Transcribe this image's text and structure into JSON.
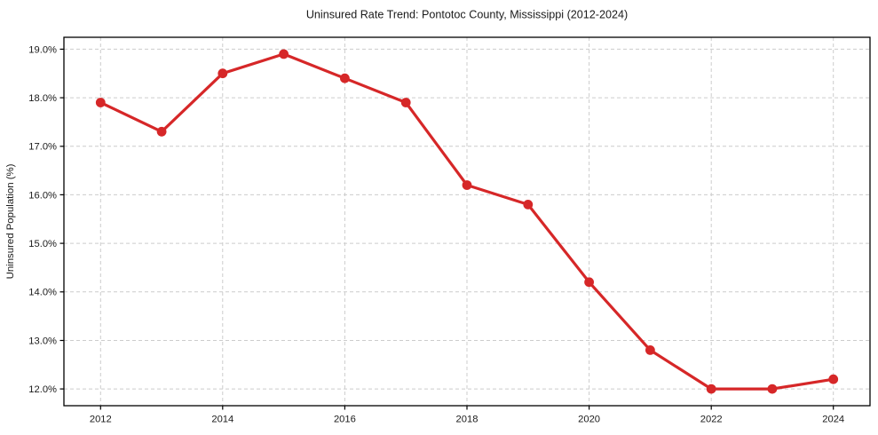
{
  "figure": {
    "background": "#ffffff"
  },
  "chart_data": {
    "type": "line",
    "title": "Uninsured Rate Trend: Pontotoc County, Mississippi (2012-2024)",
    "xlabel": "",
    "ylabel": "Uninsured Population (%)",
    "x": [
      2012,
      2013,
      2014,
      2015,
      2016,
      2017,
      2018,
      2019,
      2020,
      2021,
      2022,
      2023,
      2024
    ],
    "values": [
      17.9,
      17.3,
      18.5,
      18.9,
      18.4,
      17.9,
      16.2,
      15.8,
      14.2,
      12.8,
      12.0,
      12.0,
      12.2
    ],
    "xticks": [
      2012,
      2014,
      2016,
      2018,
      2020,
      2022,
      2024
    ],
    "xtick_labels": [
      "2012",
      "2014",
      "2016",
      "2018",
      "2020",
      "2022",
      "2024"
    ],
    "yticks": [
      12,
      13,
      14,
      15,
      16,
      17,
      18,
      19
    ],
    "ytick_labels": [
      "12.0%",
      "13.0%",
      "14.0%",
      "15.0%",
      "16.0%",
      "17.0%",
      "18.0%",
      "19.0%"
    ],
    "xlim": [
      2011.4,
      2024.6
    ],
    "ylim": [
      11.655,
      19.245
    ],
    "grid": true,
    "grid_style": "dashed",
    "legend": "none",
    "marker": "circle",
    "colors": {
      "line": "#d62728",
      "marker": "#d62728",
      "grid": "#cccccc",
      "axis": "#000000",
      "text": "#1a1a1a",
      "background": "#ffffff"
    }
  }
}
